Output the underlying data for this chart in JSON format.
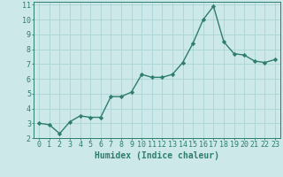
{
  "x": [
    0,
    1,
    2,
    3,
    4,
    5,
    6,
    7,
    8,
    9,
    10,
    11,
    12,
    13,
    14,
    15,
    16,
    17,
    18,
    19,
    20,
    21,
    22,
    23
  ],
  "y": [
    3.0,
    2.9,
    2.3,
    3.1,
    3.5,
    3.4,
    3.4,
    4.8,
    4.8,
    5.1,
    6.3,
    6.1,
    6.1,
    6.3,
    7.1,
    8.4,
    10.0,
    10.9,
    8.5,
    7.7,
    7.6,
    7.2,
    7.1,
    7.3
  ],
  "line_color": "#2e7d6e",
  "marker": "D",
  "marker_size": 2.2,
  "bg_color": "#cce8e8",
  "grid_color": "#aad4d4",
  "xlabel": "Humidex (Indice chaleur)",
  "ylabel": "",
  "xlim": [
    -0.5,
    23.5
  ],
  "ylim": [
    2.0,
    11.2
  ],
  "yticks": [
    2,
    3,
    4,
    5,
    6,
    7,
    8,
    9,
    10,
    11
  ],
  "xticks": [
    0,
    1,
    2,
    3,
    4,
    5,
    6,
    7,
    8,
    9,
    10,
    11,
    12,
    13,
    14,
    15,
    16,
    17,
    18,
    19,
    20,
    21,
    22,
    23
  ],
  "tick_color": "#2e7d6e",
  "axis_color": "#2e7d6e",
  "xlabel_fontsize": 7.0,
  "tick_fontsize": 6.0,
  "linewidth": 1.0
}
